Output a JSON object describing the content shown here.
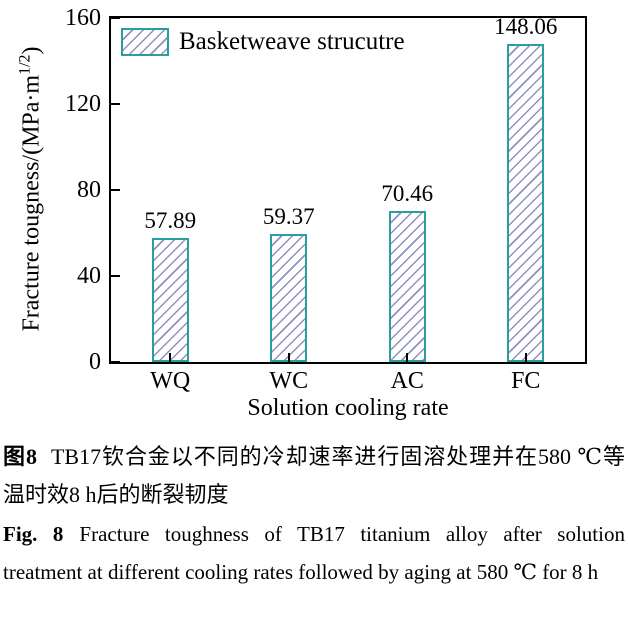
{
  "chart_data": {
    "type": "bar",
    "title": "",
    "categories": [
      "WQ",
      "WC",
      "AC",
      "FC"
    ],
    "values": [
      57.89,
      59.37,
      70.46,
      148.06
    ],
    "value_labels": [
      "57.89",
      "59.37",
      "70.46",
      "148.06"
    ],
    "xlabel": "Solution cooling rate",
    "ylabel": "Fracture tougness/(MPa·m^(1/2))",
    "ylim": [
      0,
      160
    ],
    "yticks": [
      0,
      40,
      80,
      120,
      160
    ],
    "grid": false,
    "legend_position": "upper-left",
    "legend": [
      {
        "label": "Basketweave strucutre",
        "hatch": "/",
        "fill": "#ffffff"
      }
    ]
  },
  "axis": {
    "ylabel_prefix": "Fracture tougness/(MPa·m",
    "ylabel_sup": "1/2",
    "ylabel_suffix": ")",
    "xlabel": "Solution cooling rate"
  },
  "legend": {
    "label": "Basketweave strucutre"
  },
  "caption": {
    "zh_label": "图8",
    "zh_text": "TB17钦合金以不同的冷却速率进行固溶处理并在580 ℃等温时效8 h后的断裂韧度",
    "en_label": "Fig. 8",
    "en_text": "Fracture toughness of TB17 titanium alloy after solution treatment at different cooling rates followed by aging at 580 ℃ for 8 h"
  },
  "colors": {
    "bar_border": "#2b9d9d",
    "hatch": "#9090c2",
    "axis": "#000000",
    "text": "#000000",
    "background": "#ffffff"
  }
}
